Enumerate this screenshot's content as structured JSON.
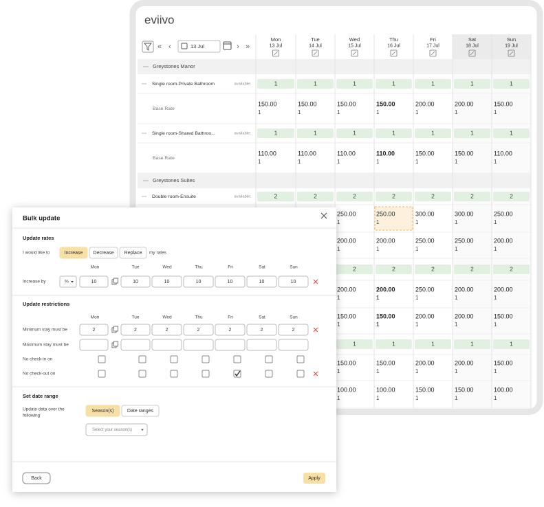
{
  "logo": "eviivo",
  "controls": {
    "first": "«",
    "prev": "‹",
    "date": "13 Jul",
    "next": "›",
    "last": "»"
  },
  "days": [
    {
      "dow": "Mon",
      "date": "13 Jul"
    },
    {
      "dow": "Tue",
      "date": "14 Jul"
    },
    {
      "dow": "Wed",
      "date": "15 Jul"
    },
    {
      "dow": "Thu",
      "date": "16 Jul"
    },
    {
      "dow": "Fri",
      "date": "17 Jul"
    },
    {
      "dow": "Sat",
      "date": "18 Jul"
    },
    {
      "dow": "Sun",
      "date": "19 Jul"
    }
  ],
  "grid": {
    "available_label": "available:",
    "rows": [
      {
        "type": "group",
        "label": "Greystones Manor"
      },
      {
        "type": "availability",
        "label": "Single room-Private Bathroom",
        "cells": [
          "1",
          "1",
          "1",
          "1",
          "1",
          "1",
          "1"
        ]
      },
      {
        "type": "rate",
        "label": "Base Rate",
        "cells": [
          {
            "rate": "150.00",
            "qty": "1"
          },
          {
            "rate": "150.00",
            "qty": "1"
          },
          {
            "rate": "150.00",
            "qty": "1"
          },
          {
            "rate": "150.00",
            "qty": "1",
            "bold": true
          },
          {
            "rate": "200.00",
            "qty": "1"
          },
          {
            "rate": "200.00",
            "qty": "1"
          },
          {
            "rate": "150.00",
            "qty": "1"
          }
        ]
      },
      {
        "type": "availability",
        "label": "Single room-Shared Bathroo...",
        "cells": [
          "1",
          "1",
          "1",
          "1",
          "1",
          "1",
          "1"
        ]
      },
      {
        "type": "rate",
        "label": "Base Rate",
        "cells": [
          {
            "rate": "110.00",
            "qty": "1"
          },
          {
            "rate": "110.00",
            "qty": "1"
          },
          {
            "rate": "110.00",
            "qty": "1"
          },
          {
            "rate": "110.00",
            "qty": "1",
            "bold": true
          },
          {
            "rate": "150.00",
            "qty": "1"
          },
          {
            "rate": "150.00",
            "qty": "1"
          },
          {
            "rate": "110.00",
            "qty": "1"
          }
        ]
      },
      {
        "type": "group",
        "label": "Greystones Suites"
      },
      {
        "type": "availability",
        "label": "Double room-Ensuite",
        "cells": [
          "2",
          "2",
          "2",
          "2",
          "2",
          "2",
          "2"
        ]
      },
      {
        "type": "rate",
        "cells": [
          null,
          null,
          {
            "rate": "250.00",
            "qty": "1"
          },
          {
            "rate": "250.00",
            "qty": "1",
            "selected": true
          },
          {
            "rate": "300.00",
            "qty": "1"
          },
          {
            "rate": "300.00",
            "qty": "1"
          },
          {
            "rate": "250.00",
            "qty": "1"
          }
        ]
      },
      {
        "type": "rate",
        "cells": [
          null,
          null,
          {
            "rate": "200.00",
            "qty": "1"
          },
          {
            "rate": "200.00",
            "qty": "1"
          },
          {
            "rate": "250.00",
            "qty": "1"
          },
          {
            "rate": "250.00",
            "qty": "1"
          },
          {
            "rate": "200.00",
            "qty": "1"
          }
        ]
      },
      {
        "type": "availability",
        "cells": [
          null,
          null,
          "2",
          "2",
          "2",
          "2",
          "2"
        ]
      },
      {
        "type": "rate",
        "cells": [
          null,
          null,
          {
            "rate": "200.00",
            "qty": "1"
          },
          {
            "rate": "200.00",
            "qty": "1",
            "bold": true,
            "bold_qty": true
          },
          {
            "rate": "250.00",
            "qty": "1"
          },
          {
            "rate": "200.00",
            "qty": "1"
          },
          {
            "rate": "200.00",
            "qty": "1"
          }
        ]
      },
      {
        "type": "rate",
        "cells": [
          null,
          null,
          {
            "rate": "150.00",
            "qty": "1"
          },
          {
            "rate": "150.00",
            "qty": "1",
            "bold": true,
            "bold_qty": true
          },
          {
            "rate": "200.00",
            "qty": "1"
          },
          {
            "rate": "200.00",
            "qty": "1"
          },
          {
            "rate": "150.00",
            "qty": "1"
          }
        ]
      },
      {
        "type": "availability",
        "cells": [
          null,
          null,
          "1",
          "1",
          "1",
          "1",
          "1"
        ]
      },
      {
        "type": "rate",
        "cells": [
          null,
          null,
          {
            "rate": "150.00",
            "qty": "1"
          },
          {
            "rate": "150.00",
            "qty": "1"
          },
          {
            "rate": "200.00",
            "qty": "1"
          },
          {
            "rate": "200.00",
            "qty": "1"
          },
          {
            "rate": "150.00",
            "qty": "1"
          }
        ]
      },
      {
        "type": "rate",
        "cells": [
          null,
          null,
          {
            "rate": "100.00",
            "qty": "1"
          },
          {
            "rate": "100.00",
            "qty": "1"
          },
          {
            "rate": "150.00",
            "qty": "1"
          },
          {
            "rate": "150.00",
            "qty": "1"
          },
          {
            "rate": "100.00",
            "qty": "1"
          }
        ]
      }
    ]
  },
  "modal": {
    "title": "Bulk update",
    "rates": {
      "heading": "Update rates",
      "intro": "I would like to",
      "options": [
        "Increase",
        "Decrease",
        "Replace"
      ],
      "selected": 0,
      "suffix": "my rates",
      "days": [
        "Mon",
        "Tue",
        "Wed",
        "Thu",
        "Fri",
        "Sat",
        "Sun"
      ],
      "field": "Increase by",
      "unit": "%",
      "values": [
        "10",
        "10",
        "10",
        "10",
        "10",
        "10",
        "10"
      ]
    },
    "restrictions": {
      "heading": "Update restrictions",
      "days": [
        "Mon",
        "Tue",
        "Wed",
        "Thu",
        "Fri",
        "Sat",
        "Sun"
      ],
      "min_label": "Minimum stay must be",
      "min_values": [
        "2",
        "2",
        "2",
        "2",
        "2",
        "2",
        "2"
      ],
      "max_label": "Maximum stay must be",
      "checkin_label": "No check-in on",
      "checkin": [
        false,
        false,
        false,
        false,
        false,
        false,
        false
      ],
      "checkout_label": "No check-out on",
      "checkout": [
        false,
        false,
        false,
        false,
        true,
        false,
        false
      ]
    },
    "date_range": {
      "heading": "Set date range",
      "intro": [
        "Update data over the",
        "following"
      ],
      "options": [
        "Season(s)",
        "Date ranges"
      ],
      "selected": 0,
      "placeholder": "Select your season(s)"
    },
    "back": "Back",
    "apply": "Apply"
  }
}
